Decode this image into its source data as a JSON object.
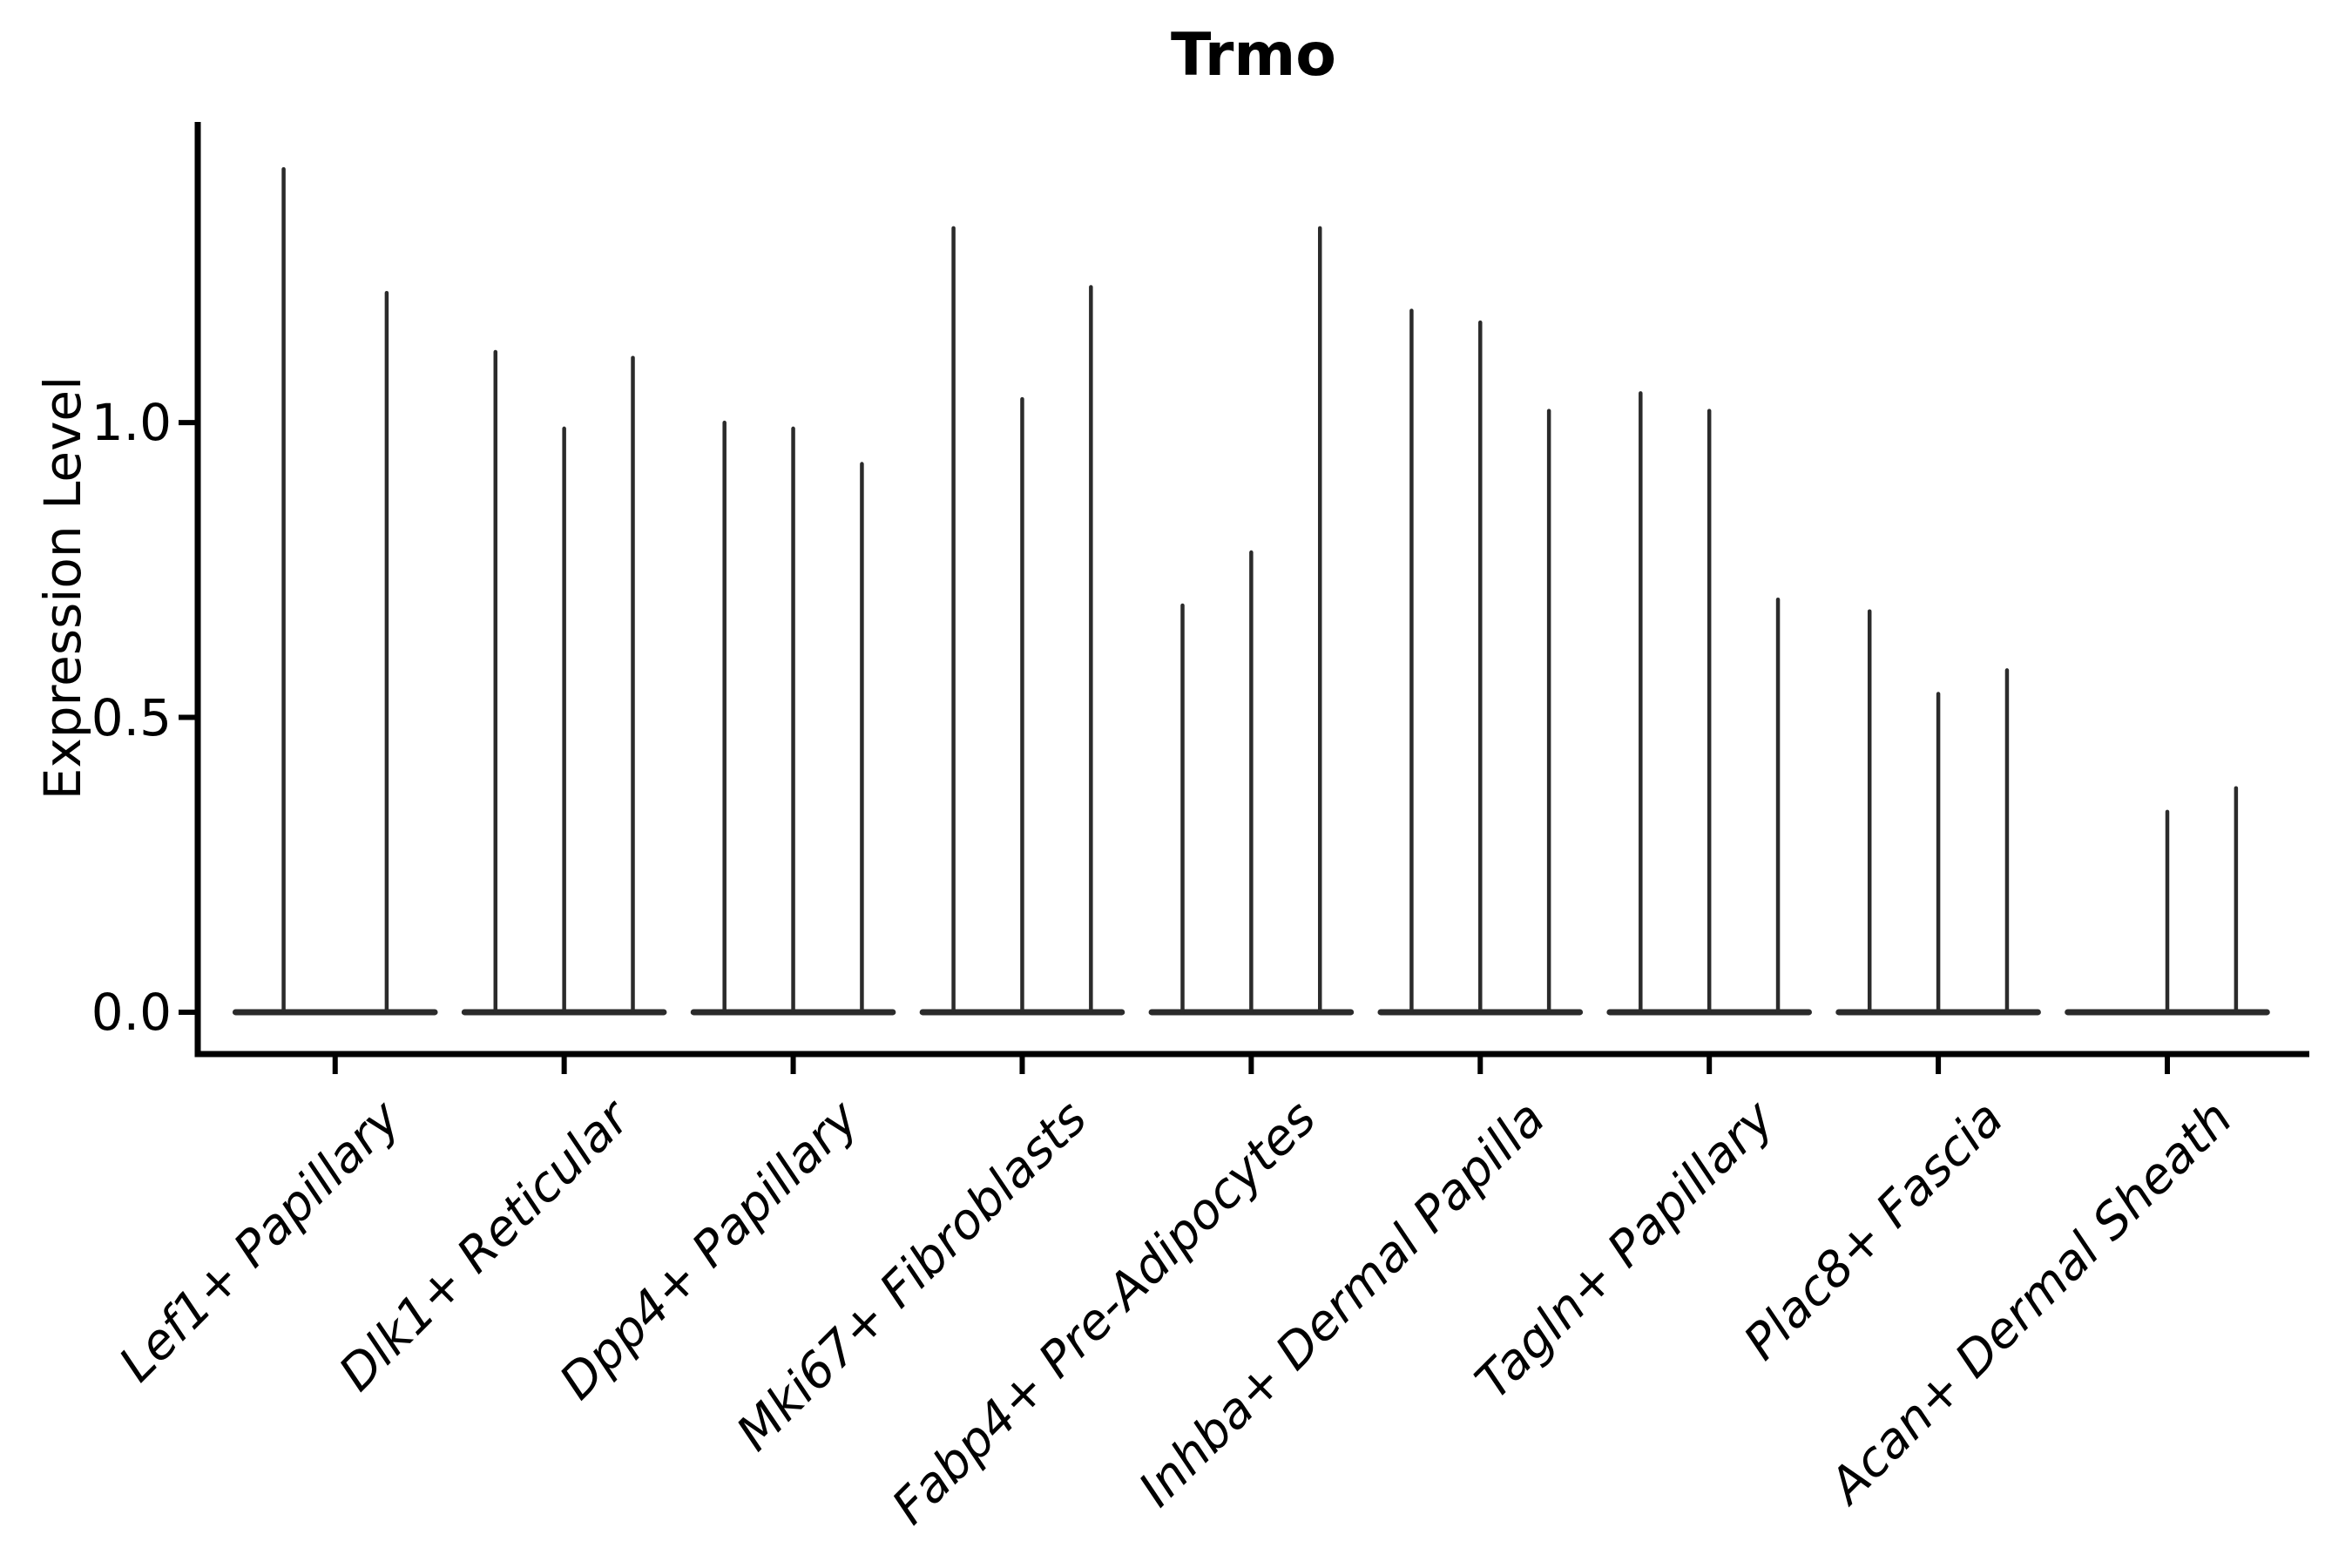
{
  "chart_data": {
    "type": "violin",
    "title": "Trmo",
    "ylabel": "Expression Level",
    "xlabel": "",
    "yticks": [
      "0.0",
      "0.5",
      "1.0"
    ],
    "ytick_values": [
      0.0,
      0.5,
      1.0
    ],
    "ylim": [
      -0.071,
      1.51
    ],
    "xlim": [
      -0.6,
      8.62
    ],
    "grid": false,
    "legend": false,
    "violin_style": "needle-thin violins with wide flat base at zero; most cells have zero expression",
    "categories": [
      "Lef1+ Papillary",
      "Dlk1+ Reticular",
      "Dpp4+ Papillary",
      "Mki67+ Fibroblasts",
      "Fabp4+ Pre-Adipocytes",
      "Inhba+ Dermal Papilla",
      "Tagln+ Papillary",
      "Plac8+ Fascia",
      "Acan+ Dermal Sheath"
    ],
    "groups": [
      {
        "category": "Lef1+ Papillary",
        "violin_max_values": [
          1.43,
          1.22
        ]
      },
      {
        "category": "Dlk1+ Reticular",
        "violin_max_values": [
          1.12,
          0.99,
          1.11
        ]
      },
      {
        "category": "Dpp4+ Papillary",
        "violin_max_values": [
          1.0,
          0.99,
          0.93
        ]
      },
      {
        "category": "Mki67+ Fibroblasts",
        "violin_max_values": [
          1.33,
          1.04,
          1.23
        ]
      },
      {
        "category": "Fabp4+ Pre-Adipocytes",
        "violin_max_values": [
          0.69,
          0.78,
          1.33
        ]
      },
      {
        "category": "Inhba+ Dermal Papilla",
        "violin_max_values": [
          1.19,
          1.17,
          1.02
        ]
      },
      {
        "category": "Tagln+ Papillary",
        "violin_max_values": [
          1.05,
          1.02,
          0.7
        ]
      },
      {
        "category": "Plac8+ Fascia",
        "violin_max_values": [
          0.68,
          0.54,
          0.58
        ]
      },
      {
        "category": "Acan+ Dermal Sheath",
        "violin_max_values": [
          0.0,
          0.34,
          0.38
        ]
      }
    ],
    "group_width_fraction": 0.9,
    "colors": {
      "violin_stroke": "#2b2b2b",
      "axis": "#000000",
      "text": "#000000",
      "background": "#ffffff"
    }
  }
}
